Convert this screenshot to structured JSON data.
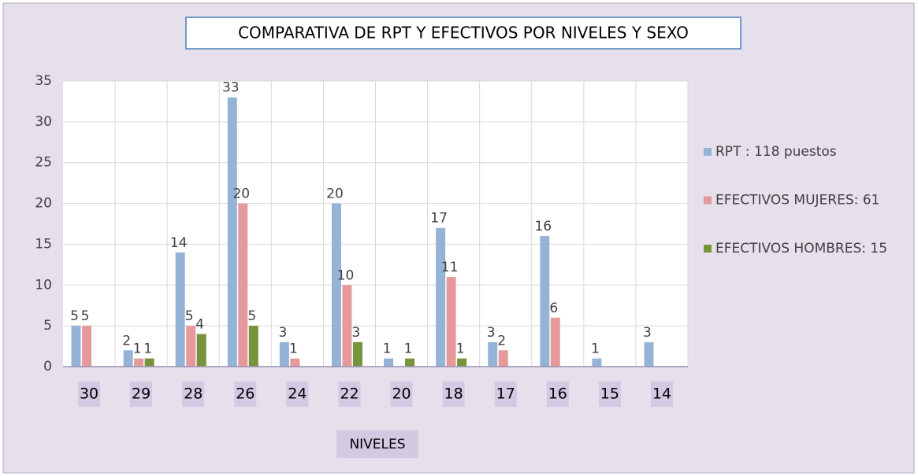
{
  "chart_data": {
    "type": "bar",
    "title": "COMPARATIVA DE RPT Y EFECTIVOS POR NIVELES Y SEXO",
    "x_label": "NIVELES",
    "categories": [
      "30",
      "29",
      "28",
      "26",
      "24",
      "22",
      "20",
      "18",
      "17",
      "16",
      "15",
      "14"
    ],
    "series": [
      {
        "name": "RPT : 118 puestos",
        "color": "#95b3d7",
        "values": [
          5,
          2,
          14,
          33,
          3,
          20,
          1,
          17,
          3,
          16,
          1,
          3
        ]
      },
      {
        "name": "EFECTIVOS MUJERES:  61",
        "color": "#e6999a",
        "values": [
          5,
          1,
          5,
          20,
          1,
          10,
          0,
          11,
          2,
          6,
          0,
          0
        ]
      },
      {
        "name": "EFECTIVOS HOMBRES: 15",
        "color": "#77933c",
        "values": [
          0,
          1,
          4,
          5,
          0,
          3,
          1,
          1,
          0,
          0,
          0,
          0
        ]
      }
    ],
    "ylim": [
      0,
      35
    ],
    "yticks": [
      0,
      5,
      10,
      15,
      20,
      25,
      30,
      35
    ],
    "grid": true,
    "legend": "right"
  }
}
